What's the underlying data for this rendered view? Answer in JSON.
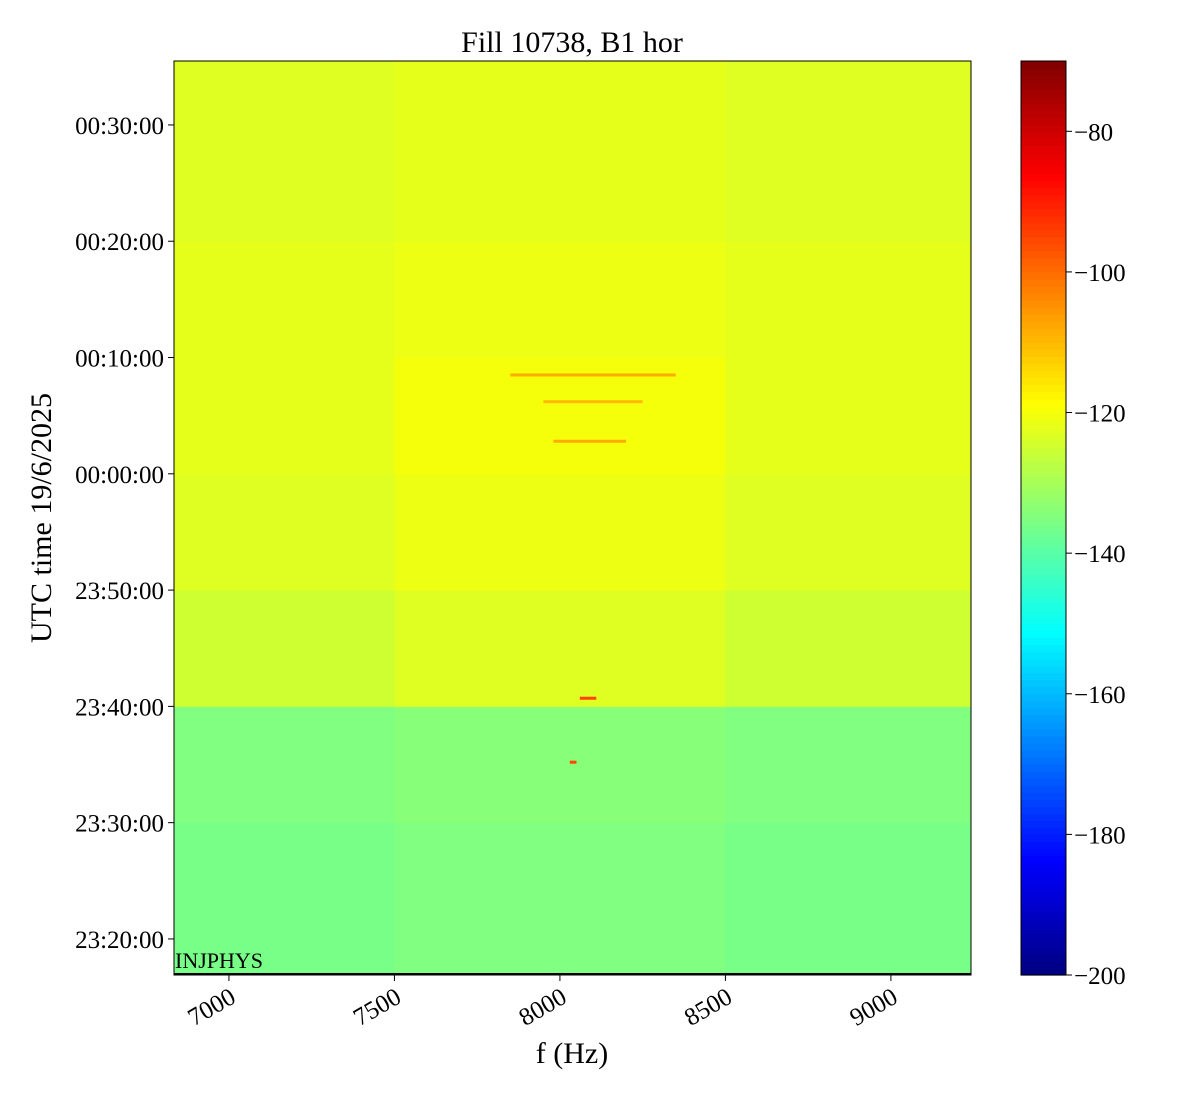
{
  "chart_data": {
    "type": "heatmap",
    "title": "Fill 10738, B1 hor",
    "x_label": "f (Hz)",
    "y_label": "UTC time 19/6/2025",
    "annotation": "INJPHYS",
    "colormap": "jet",
    "xlim": [
      6834,
      9242
    ],
    "xticks": [
      7000,
      7500,
      8000,
      8500,
      9000
    ],
    "ylim": [
      -43.1,
      35.5
    ],
    "yticks": [
      {
        "value": -40,
        "label": "23:20:00"
      },
      {
        "value": -30,
        "label": "23:30:00"
      },
      {
        "value": -20,
        "label": "23:40:00"
      },
      {
        "value": -10,
        "label": "23:50:00"
      },
      {
        "value": 0,
        "label": "00:00:00"
      },
      {
        "value": 10,
        "label": "00:10:00"
      },
      {
        "value": 20,
        "label": "00:20:00"
      },
      {
        "value": 30,
        "label": "00:30:00"
      }
    ],
    "x_edges": [
      6834,
      7500,
      8000,
      8500,
      9242
    ],
    "y_edges": [
      -43.1,
      -30,
      -20,
      -10,
      0,
      10,
      20,
      35.5
    ],
    "z": [
      [
        -136,
        -135,
        -135,
        -136
      ],
      [
        -135,
        -134,
        -134,
        -135
      ],
      [
        -125,
        -123,
        -123,
        -125
      ],
      [
        -123,
        -121,
        -121,
        -123
      ],
      [
        -122,
        -120,
        -120,
        -122
      ],
      [
        -122,
        -121,
        -121,
        -122
      ],
      [
        -123,
        -122,
        -122,
        -123
      ]
    ],
    "streaks": [
      {
        "x": [
          7850,
          8350
        ],
        "y": 8.5,
        "value": -108
      },
      {
        "x": [
          7950,
          8250
        ],
        "y": 6.2,
        "value": -110
      },
      {
        "x": [
          7980,
          8200
        ],
        "y": 2.8,
        "value": -108
      },
      {
        "x": [
          8060,
          8110
        ],
        "y": -19.3,
        "value": -95
      },
      {
        "x": [
          8030,
          8050
        ],
        "y": -24.8,
        "value": -95
      }
    ],
    "clim": [
      -200,
      -70
    ],
    "cticks": [
      {
        "value": -200,
        "label": "−200"
      },
      {
        "value": -180,
        "label": "−180"
      },
      {
        "value": -160,
        "label": "−160"
      },
      {
        "value": -140,
        "label": "−140"
      },
      {
        "value": -120,
        "label": "−120"
      },
      {
        "value": -100,
        "label": "−100"
      },
      {
        "value": -80,
        "label": "−80"
      }
    ]
  }
}
